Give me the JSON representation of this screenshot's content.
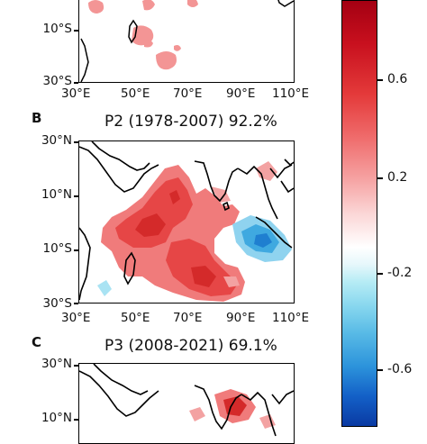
{
  "panel_a": {
    "lat_labels": [
      "10°S",
      "30°S"
    ],
    "lon_labels": [
      "30°E",
      "50°E",
      "70°E",
      "90°E",
      "110°E"
    ]
  },
  "panel_b": {
    "letter": "B",
    "title": "P2 (1978-2007) 92.2%",
    "lat_labels": [
      "30°N",
      "10°N",
      "10°S",
      "30°S"
    ],
    "lon_labels": [
      "30°E",
      "50°E",
      "70°E",
      "90°E",
      "110°E"
    ]
  },
  "panel_c": {
    "letter": "C",
    "title": "P3 (2008-2021) 69.1%",
    "lat_labels": [
      "30°N",
      "10°N"
    ]
  },
  "colorbar": {
    "tick_labels": [
      "0.6",
      "0.2",
      "-0.2",
      "-0.6"
    ],
    "colors": {
      "max": "#a40012",
      "positive": "#e43a3a",
      "neutral": "#ffffff",
      "negative": "#2c93db",
      "min": "#0a3aa3"
    }
  },
  "colors": {
    "land_outline": "#000000",
    "warm_anomaly": "#e43a3a",
    "cool_anomaly": "#3fa9e0"
  }
}
